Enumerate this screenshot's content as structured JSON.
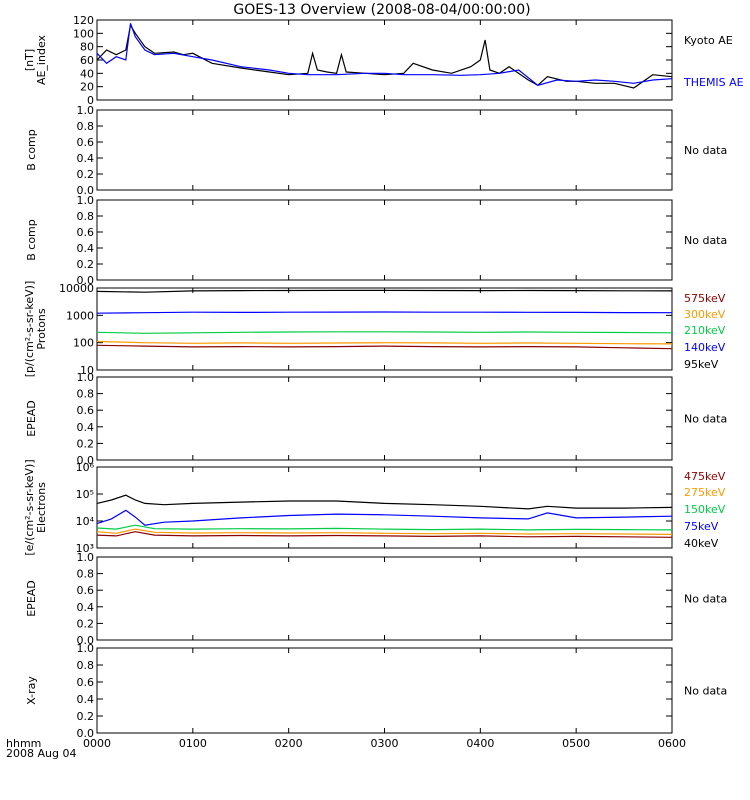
{
  "title": "GOES-13 Overview (2008-08-04/00:00:00)",
  "time_axis": {
    "label_line1": "hhmm",
    "label_line2": "2008 Aug 04",
    "ticks": [
      "0000",
      "0100",
      "0200",
      "0300",
      "0400",
      "0500",
      "0600"
    ]
  },
  "colors": {
    "kyoto": "#000000",
    "themis": "#0000ff",
    "e95": "#000000",
    "e140": "#0000ff",
    "e210": "#00cc44",
    "e300": "#ff9900",
    "e575": "#8b0000"
  },
  "no_data_text": "No data",
  "chart_data": [
    {
      "type": "line",
      "panel": "ae",
      "ylabel_lines": [
        "AE_index",
        "[nT]"
      ],
      "ylim": [
        0,
        120
      ],
      "yticks": [
        "0",
        "20",
        "40",
        "60",
        "80",
        "100",
        "120"
      ],
      "xlim_hours": [
        0,
        6
      ],
      "series": [
        {
          "name": "Kyoto AE",
          "color": "#000000",
          "x": [
            0,
            0.1,
            0.2,
            0.3,
            0.35,
            0.4,
            0.5,
            0.6,
            0.8,
            0.9,
            1.0,
            1.2,
            1.5,
            1.8,
            2.0,
            2.2,
            2.25,
            2.3,
            2.4,
            2.5,
            2.55,
            2.6,
            2.8,
            3.0,
            3.2,
            3.3,
            3.5,
            3.7,
            3.9,
            4.0,
            4.05,
            4.1,
            4.2,
            4.3,
            4.5,
            4.6,
            4.7,
            4.9,
            5.0,
            5.2,
            5.4,
            5.6,
            5.8,
            6.0
          ],
          "y": [
            60,
            75,
            68,
            75,
            112,
            100,
            80,
            70,
            72,
            68,
            70,
            55,
            48,
            42,
            38,
            40,
            70,
            45,
            42,
            40,
            68,
            42,
            40,
            38,
            40,
            55,
            45,
            40,
            50,
            60,
            90,
            45,
            40,
            50,
            30,
            22,
            35,
            28,
            28,
            25,
            25,
            18,
            38,
            35
          ]
        },
        {
          "name": "THEMIS AE",
          "color": "#0000ff",
          "x": [
            0,
            0.1,
            0.2,
            0.3,
            0.35,
            0.4,
            0.5,
            0.6,
            0.8,
            1.0,
            1.2,
            1.5,
            1.8,
            2.0,
            2.2,
            2.5,
            2.8,
            3.0,
            3.2,
            3.5,
            3.8,
            4.0,
            4.2,
            4.4,
            4.6,
            4.8,
            5.0,
            5.2,
            5.4,
            5.6,
            5.8,
            6.0
          ],
          "y": [
            70,
            55,
            65,
            60,
            115,
            95,
            75,
            68,
            70,
            65,
            60,
            50,
            45,
            40,
            38,
            38,
            40,
            40,
            38,
            38,
            37,
            38,
            40,
            45,
            22,
            30,
            28,
            30,
            28,
            25,
            30,
            32
          ]
        }
      ]
    },
    {
      "type": "line",
      "panel": "b1",
      "ylabel_lines": [
        "B comp"
      ],
      "ylim": [
        0,
        1
      ],
      "yticks": [
        "0.0",
        "0.2",
        "0.4",
        "0.6",
        "0.8",
        "1.0"
      ],
      "no_data": true
    },
    {
      "type": "line",
      "panel": "b2",
      "ylabel_lines": [
        "B comp"
      ],
      "ylim": [
        0,
        1
      ],
      "yticks": [
        "0.0",
        "0.2",
        "0.4",
        "0.6",
        "0.8",
        "1.0"
      ],
      "no_data": true
    },
    {
      "type": "line",
      "panel": "protons",
      "ylabel_lines": [
        "Protons",
        "[p/(cm²-s-sr-keV)]"
      ],
      "yscale": "log",
      "ylim": [
        10,
        10000
      ],
      "yticks": [
        "10",
        "100",
        "1000",
        "10000"
      ],
      "series": [
        {
          "name": "575keV",
          "color": "#8b0000",
          "x": [
            0,
            0.5,
            1,
            1.5,
            2,
            2.5,
            3,
            3.5,
            4,
            4.5,
            5,
            5.5,
            6
          ],
          "y": [
            80,
            75,
            70,
            72,
            70,
            72,
            75,
            72,
            70,
            72,
            70,
            65,
            60
          ]
        },
        {
          "name": "300keV",
          "color": "#ff9900",
          "x": [
            0,
            0.5,
            1,
            1.5,
            2,
            2.5,
            3,
            3.5,
            4,
            4.5,
            5,
            5.5,
            6
          ],
          "y": [
            110,
            100,
            95,
            98,
            95,
            97,
            100,
            98,
            95,
            97,
            95,
            92,
            90
          ]
        },
        {
          "name": "210keV",
          "color": "#00cc44",
          "x": [
            0,
            0.5,
            1,
            1.5,
            2,
            2.5,
            3,
            3.5,
            4,
            4.5,
            5,
            5.5,
            6
          ],
          "y": [
            240,
            220,
            230,
            240,
            245,
            250,
            250,
            245,
            240,
            245,
            240,
            235,
            230
          ]
        },
        {
          "name": "140keV",
          "color": "#0000ff",
          "x": [
            0,
            0.5,
            1,
            1.5,
            2,
            2.5,
            3,
            3.5,
            4,
            4.5,
            5,
            5.5,
            6
          ],
          "y": [
            1200,
            1250,
            1300,
            1280,
            1300,
            1310,
            1320,
            1300,
            1300,
            1290,
            1280,
            1260,
            1250
          ]
        },
        {
          "name": "95keV",
          "color": "#000000",
          "x": [
            0,
            0.5,
            1,
            1.5,
            2,
            2.5,
            3,
            3.5,
            4,
            4.5,
            5,
            5.5,
            6
          ],
          "y": [
            7500,
            7000,
            7800,
            8000,
            8100,
            8200,
            8200,
            8100,
            8000,
            8100,
            8000,
            7900,
            7800
          ]
        }
      ]
    },
    {
      "type": "line",
      "panel": "epead1",
      "ylabel_lines": [
        "EPEAD"
      ],
      "ylim": [
        0,
        1
      ],
      "yticks": [
        "0.0",
        "0.2",
        "0.4",
        "0.6",
        "0.8",
        "1.0"
      ],
      "no_data": true
    },
    {
      "type": "line",
      "panel": "electrons",
      "ylabel_lines": [
        "Electrons",
        "[e/(cm²-s-sr-keV)]"
      ],
      "yscale": "log",
      "ylim": [
        1000,
        1000000
      ],
      "yticks": [
        "10³",
        "10⁴",
        "10⁵",
        "10⁶"
      ],
      "series": [
        {
          "name": "475keV",
          "color": "#8b0000",
          "x": [
            0,
            0.2,
            0.4,
            0.6,
            1,
            1.5,
            2,
            2.5,
            3,
            3.5,
            4,
            4.5,
            5,
            5.5,
            6
          ],
          "y": [
            3000,
            2800,
            4000,
            3000,
            2800,
            2900,
            2800,
            2900,
            2800,
            2700,
            2800,
            2600,
            2700,
            2600,
            2500
          ]
        },
        {
          "name": "275keV",
          "color": "#ff9900",
          "x": [
            0,
            0.2,
            0.4,
            0.6,
            1,
            1.5,
            2,
            2.5,
            3,
            3.5,
            4,
            4.5,
            5,
            5.5,
            6
          ],
          "y": [
            4000,
            3500,
            5000,
            3800,
            3600,
            3700,
            3600,
            3700,
            3500,
            3400,
            3500,
            3300,
            3400,
            3300,
            3200
          ]
        },
        {
          "name": "150keV",
          "color": "#00cc44",
          "x": [
            0,
            0.2,
            0.4,
            0.6,
            1,
            1.5,
            2,
            2.5,
            3,
            3.5,
            4,
            4.5,
            5,
            5.5,
            6
          ],
          "y": [
            5500,
            5000,
            7000,
            5200,
            5000,
            5200,
            5100,
            5300,
            5000,
            4800,
            5000,
            4700,
            4900,
            4800,
            4700
          ]
        },
        {
          "name": "75keV",
          "color": "#0000ff",
          "x": [
            0,
            0.15,
            0.3,
            0.4,
            0.5,
            0.7,
            1,
            1.5,
            2,
            2.5,
            3,
            3.5,
            4,
            4.5,
            4.7,
            5,
            5.5,
            6
          ],
          "y": [
            8000,
            12000,
            25000,
            14000,
            7000,
            9000,
            10000,
            13000,
            16000,
            18000,
            17000,
            15000,
            13000,
            12000,
            20000,
            13000,
            14000,
            15000
          ]
        },
        {
          "name": "40keV",
          "color": "#000000",
          "x": [
            0,
            0.15,
            0.3,
            0.4,
            0.5,
            0.7,
            1,
            1.5,
            2,
            2.5,
            3,
            3.5,
            4,
            4.5,
            4.7,
            5,
            5.5,
            6
          ],
          "y": [
            45000,
            60000,
            90000,
            60000,
            45000,
            40000,
            45000,
            50000,
            55000,
            55000,
            45000,
            40000,
            35000,
            28000,
            35000,
            30000,
            30000,
            32000
          ]
        }
      ]
    },
    {
      "type": "line",
      "panel": "epead2",
      "ylabel_lines": [
        "EPEAD"
      ],
      "ylim": [
        0,
        1
      ],
      "yticks": [
        "0.0",
        "0.2",
        "0.4",
        "0.6",
        "0.8",
        "1.0"
      ],
      "no_data": true
    },
    {
      "type": "line",
      "panel": "xray",
      "ylabel_lines": [
        "X-ray"
      ],
      "ylim": [
        0,
        1
      ],
      "yticks": [
        "0.0",
        "0.2",
        "0.4",
        "0.6",
        "0.8",
        "1.0"
      ],
      "no_data": true
    }
  ]
}
